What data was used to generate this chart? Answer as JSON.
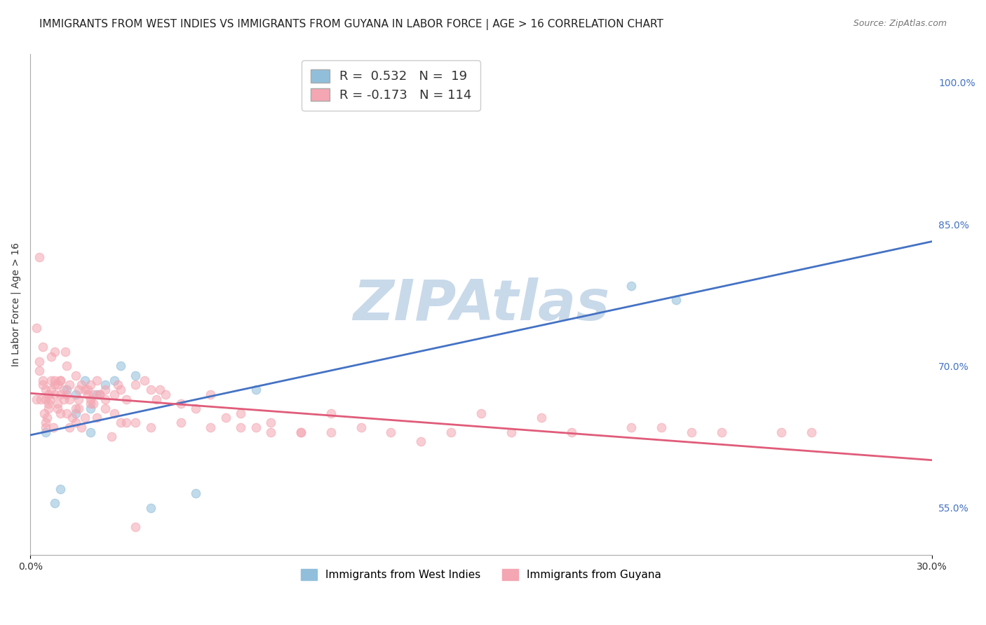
{
  "title": "IMMIGRANTS FROM WEST INDIES VS IMMIGRANTS FROM GUYANA IN LABOR FORCE | AGE > 16 CORRELATION CHART",
  "source": "Source: ZipAtlas.com",
  "ylabel": "In Labor Force | Age > 16",
  "watermark": "ZIPAtlas",
  "legend_blue_label": "Immigrants from West Indies",
  "legend_pink_label": "Immigrants from Guyana",
  "R_blue": 0.532,
  "N_blue": 19,
  "R_pink": -0.173,
  "N_pink": 114,
  "blue_color": "#91BFDB",
  "pink_color": "#F4A6B2",
  "blue_line_color": "#4472C4",
  "pink_line_color": "#E05C7A",
  "blue_scatter_x": [
    0.5,
    0.8,
    1.0,
    1.2,
    1.5,
    1.5,
    1.8,
    2.0,
    2.0,
    2.2,
    2.5,
    2.8,
    3.0,
    3.5,
    4.0,
    5.5,
    20.0,
    21.5,
    7.5
  ],
  "blue_scatter_y": [
    63.0,
    55.5,
    57.0,
    67.5,
    65.0,
    67.0,
    68.5,
    63.0,
    65.5,
    67.0,
    68.0,
    68.5,
    70.0,
    69.0,
    55.0,
    56.5,
    78.5,
    77.0,
    67.5
  ],
  "pink_scatter_x": [
    0.2,
    0.3,
    0.3,
    0.4,
    0.4,
    0.5,
    0.5,
    0.5,
    0.6,
    0.6,
    0.7,
    0.7,
    0.8,
    0.8,
    0.8,
    0.9,
    0.9,
    1.0,
    1.0,
    1.0,
    1.1,
    1.2,
    1.2,
    1.3,
    1.3,
    1.5,
    1.5,
    1.6,
    1.6,
    1.7,
    1.8,
    1.9,
    2.0,
    2.0,
    2.1,
    2.2,
    2.3,
    2.5,
    2.5,
    2.8,
    2.9,
    3.0,
    3.2,
    3.5,
    3.5,
    4.0,
    4.2,
    4.5,
    5.0,
    5.5,
    6.0,
    6.5,
    7.0,
    7.5,
    8.0,
    9.0,
    10.0,
    11.0,
    13.0,
    15.0,
    17.0,
    20.0,
    22.0,
    25.0,
    0.2,
    0.3,
    0.4,
    0.5,
    0.6,
    0.7,
    0.8,
    0.9,
    1.0,
    1.1,
    1.2,
    1.3,
    1.4,
    1.5,
    1.6,
    1.8,
    2.0,
    2.2,
    2.5,
    2.8,
    3.0,
    3.5,
    4.0,
    5.0,
    6.0,
    7.0,
    8.0,
    9.0,
    10.0,
    12.0,
    14.0,
    16.0,
    18.0,
    21.0,
    23.0,
    26.0,
    3.2,
    2.1,
    1.9,
    0.35,
    1.7,
    4.3,
    2.7,
    3.8,
    0.65,
    0.75,
    1.15,
    0.55,
    0.45,
    2.3
  ],
  "pink_scatter_y": [
    66.5,
    81.5,
    69.5,
    68.5,
    72.0,
    67.5,
    66.5,
    64.0,
    67.0,
    66.0,
    68.5,
    67.5,
    68.0,
    67.0,
    71.5,
    68.0,
    66.0,
    65.0,
    68.5,
    67.0,
    67.5,
    67.0,
    70.0,
    68.0,
    66.5,
    69.0,
    65.5,
    67.5,
    66.5,
    68.0,
    67.5,
    67.0,
    68.0,
    66.5,
    67.0,
    68.5,
    67.0,
    67.5,
    66.5,
    67.0,
    68.0,
    67.5,
    66.5,
    68.0,
    53.0,
    67.5,
    66.5,
    67.0,
    66.0,
    65.5,
    67.0,
    64.5,
    65.0,
    63.5,
    64.0,
    63.0,
    65.0,
    63.5,
    62.0,
    65.0,
    64.5,
    63.5,
    63.0,
    63.0,
    74.0,
    70.5,
    68.0,
    63.5,
    65.5,
    71.0,
    68.5,
    65.5,
    68.5,
    66.5,
    65.0,
    63.5,
    64.5,
    64.0,
    65.5,
    64.5,
    66.0,
    64.5,
    65.5,
    65.0,
    64.0,
    64.0,
    63.5,
    64.0,
    63.5,
    63.5,
    63.0,
    63.0,
    63.0,
    63.0,
    63.0,
    63.0,
    63.0,
    63.5,
    63.0,
    63.0,
    64.0,
    66.0,
    67.5,
    66.5,
    63.5,
    67.5,
    62.5,
    68.5,
    66.5,
    63.5,
    71.5,
    64.5,
    65.0,
    67.0
  ],
  "right_yticks": [
    55.0,
    70.0,
    85.0,
    100.0
  ],
  "xmin": 0.0,
  "xmax": 30.0,
  "ymin": 50.0,
  "ymax": 103.0,
  "background_color": "#FFFFFF",
  "grid_color": "#DDDDDD",
  "watermark_color": "#C8D9EA",
  "title_fontsize": 11,
  "axis_fontsize": 10,
  "scatter_size": 80,
  "scatter_alpha": 0.55
}
